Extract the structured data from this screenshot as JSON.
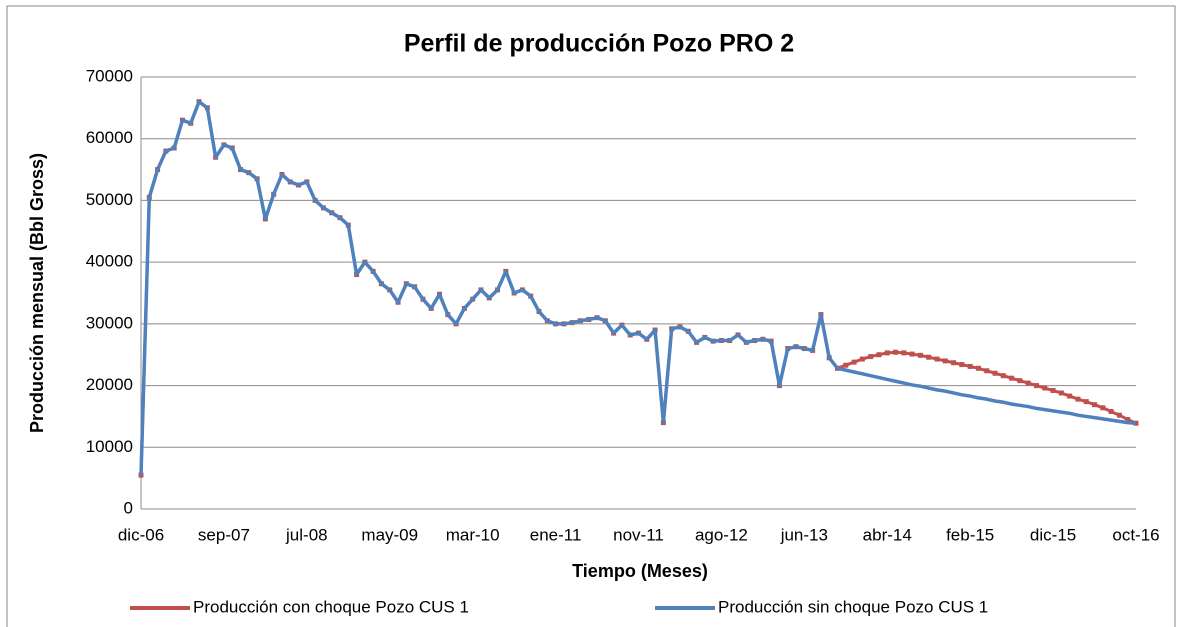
{
  "chart_data": {
    "type": "line",
    "title": "Perfil de producción Pozo PRO 2",
    "ylabel": "Producción mensual (Bbl Gross)",
    "xlabel": "Tiempo (Meses)",
    "categories": [
      "dic-06",
      null,
      null,
      null,
      null,
      null,
      null,
      null,
      null,
      null,
      "sep-07",
      null,
      null,
      null,
      null,
      null,
      null,
      null,
      null,
      null,
      "jul-08",
      null,
      null,
      null,
      null,
      null,
      null,
      null,
      null,
      null,
      "may-09",
      null,
      null,
      null,
      null,
      null,
      null,
      null,
      null,
      null,
      "mar-10",
      null,
      null,
      null,
      null,
      null,
      null,
      null,
      null,
      null,
      "ene-11",
      null,
      null,
      null,
      null,
      null,
      null,
      null,
      null,
      null,
      "nov-11",
      null,
      null,
      null,
      null,
      null,
      null,
      null,
      null,
      null,
      "ago-12",
      null,
      null,
      null,
      null,
      null,
      null,
      null,
      null,
      null,
      "jun-13",
      null,
      null,
      null,
      null,
      null,
      null,
      null,
      null,
      null,
      "abr-14",
      null,
      null,
      null,
      null,
      null,
      null,
      null,
      null,
      null,
      "feb-15",
      null,
      null,
      null,
      null,
      null,
      null,
      null,
      null,
      null,
      "dic-15",
      null,
      null,
      null,
      null,
      null,
      null,
      null,
      null,
      null,
      "oct-16"
    ],
    "series": [
      {
        "name": "Producción con choque Pozo CUS 1",
        "color": "#c0504d",
        "values": [
          5500,
          50500,
          55000,
          58000,
          58500,
          63000,
          62500,
          66000,
          65000,
          57000,
          59000,
          58500,
          55000,
          54500,
          53500,
          47000,
          51000,
          54200,
          53000,
          52500,
          53000,
          50000,
          48800,
          48000,
          47200,
          46000,
          38000,
          40000,
          38500,
          36500,
          35500,
          33500,
          36500,
          36000,
          34000,
          32500,
          34800,
          31500,
          30000,
          32500,
          34000,
          35500,
          34200,
          35500,
          38500,
          35000,
          35500,
          34500,
          32000,
          30500,
          30000,
          30000,
          30200,
          30500,
          30700,
          31000,
          30500,
          28500,
          29800,
          28200,
          28500,
          27500,
          29000,
          14000,
          29200,
          29500,
          28800,
          27000,
          27800,
          27200,
          27300,
          27300,
          28200,
          27000,
          27300,
          27500,
          27200,
          20000,
          26000,
          26300,
          26000,
          25700,
          31500,
          24500,
          22800,
          23300,
          23800,
          24300,
          24700,
          25000,
          25300,
          25400,
          25300,
          25100,
          24900,
          24600,
          24300,
          24000,
          23700,
          23400,
          23100,
          22800,
          22400,
          22000,
          21600,
          21200,
          20800,
          20400,
          20000,
          19600,
          19200,
          18800,
          18300,
          17800,
          17400,
          16900,
          16400,
          15800,
          15200,
          14500,
          13900
        ]
      },
      {
        "name": "Producción sin choque Pozo CUS 1",
        "color": "#4f81bd",
        "values": [
          5500,
          50500,
          55000,
          58000,
          58500,
          63000,
          62500,
          66000,
          65000,
          57000,
          59000,
          58500,
          55000,
          54500,
          53500,
          47000,
          51000,
          54200,
          53000,
          52500,
          53000,
          50000,
          48800,
          48000,
          47200,
          46000,
          38000,
          40000,
          38500,
          36500,
          35500,
          33500,
          36500,
          36000,
          34000,
          32500,
          34800,
          31500,
          30000,
          32500,
          34000,
          35500,
          34200,
          35500,
          38500,
          35000,
          35500,
          34500,
          32000,
          30500,
          30000,
          30000,
          30200,
          30500,
          30700,
          31000,
          30500,
          28500,
          29800,
          28200,
          28500,
          27500,
          29000,
          14000,
          29200,
          29500,
          28800,
          27000,
          27800,
          27200,
          27300,
          27300,
          28200,
          27000,
          27300,
          27500,
          27200,
          20000,
          26000,
          26300,
          26000,
          25700,
          31500,
          24500,
          22800,
          22500,
          22200,
          21900,
          21600,
          21300,
          21000,
          20700,
          20400,
          20100,
          19900,
          19600,
          19300,
          19100,
          18800,
          18500,
          18300,
          18000,
          17800,
          17500,
          17300,
          17000,
          16800,
          16600,
          16300,
          16100,
          15900,
          15700,
          15500,
          15200,
          15000,
          14800,
          14600,
          14400,
          14200,
          14000,
          13900
        ]
      }
    ],
    "ylim": [
      0,
      70000
    ],
    "yticks": [
      0,
      10000,
      20000,
      30000,
      40000,
      50000,
      60000,
      70000
    ],
    "grid": true,
    "legend": "bottom"
  }
}
